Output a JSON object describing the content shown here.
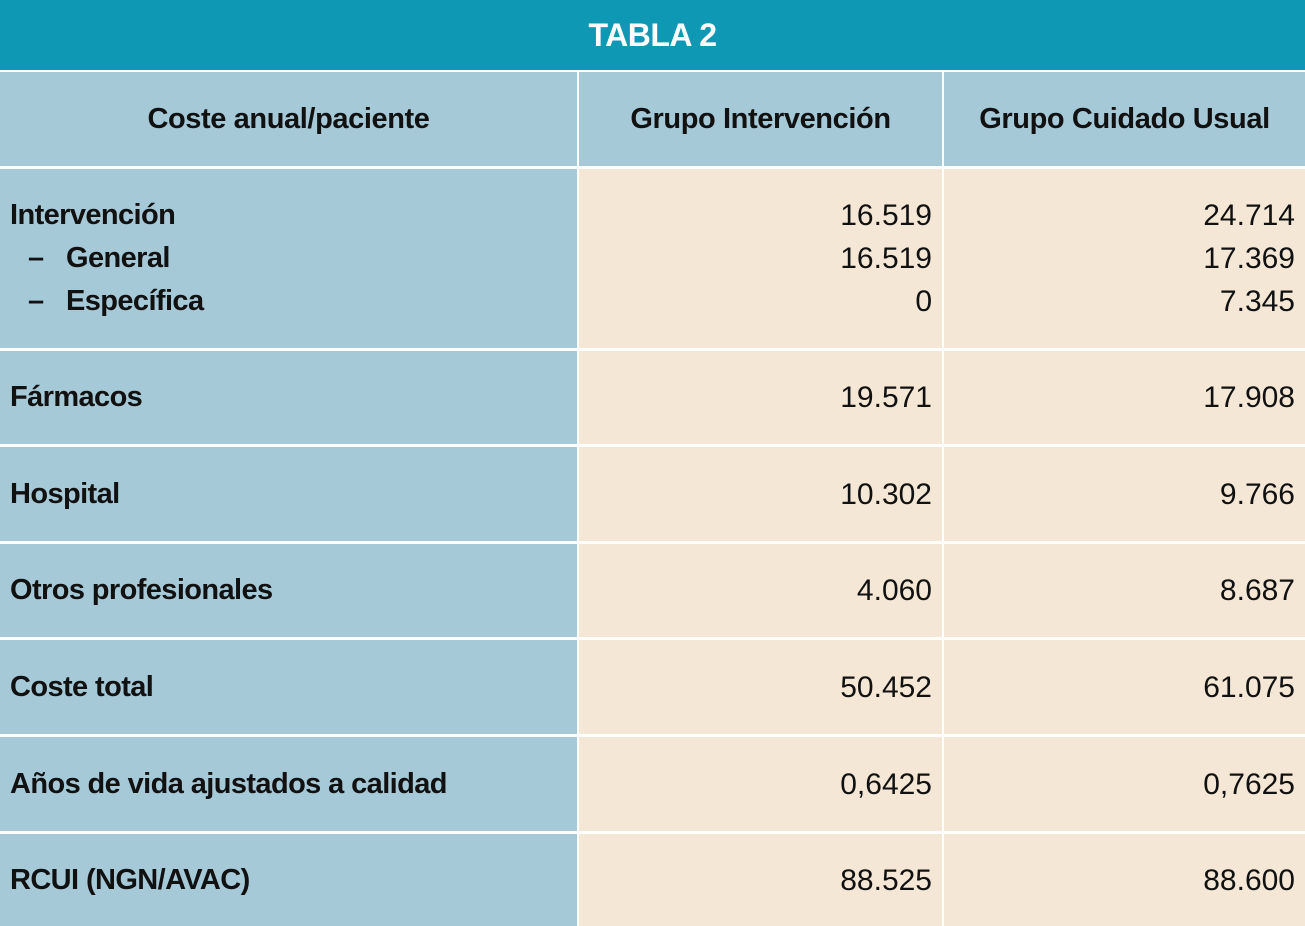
{
  "title": "TABLA 2",
  "headers": [
    "Coste anual/paciente",
    "Grupo Intervención",
    "Grupo Cuidado Usual"
  ],
  "intervention": {
    "label": "Intervención",
    "sub": [
      {
        "dash": "–",
        "label": "General",
        "intervention": "16.519",
        "usual": "17.369"
      },
      {
        "dash": "–",
        "label": "Específica",
        "intervention": "0",
        "usual": "7.345"
      }
    ],
    "intervention_value": "16.519",
    "usual_value": "24.714"
  },
  "rows": [
    {
      "label": "Fármacos",
      "intervention": "19.571",
      "usual": "17.908"
    },
    {
      "label": "Hospital",
      "intervention": "10.302",
      "usual": "9.766"
    },
    {
      "label": "Otros profesionales",
      "intervention": "4.060",
      "usual": "8.687"
    },
    {
      "label": "Coste total",
      "intervention": "50.452",
      "usual": "61.075"
    },
    {
      "label": "Años de vida ajustados a calidad",
      "intervention": "0,6425",
      "usual": "0,7625"
    },
    {
      "label": "RCUI (NGN/AVAC)",
      "intervention": "88.525",
      "usual": "88.600"
    }
  ]
}
